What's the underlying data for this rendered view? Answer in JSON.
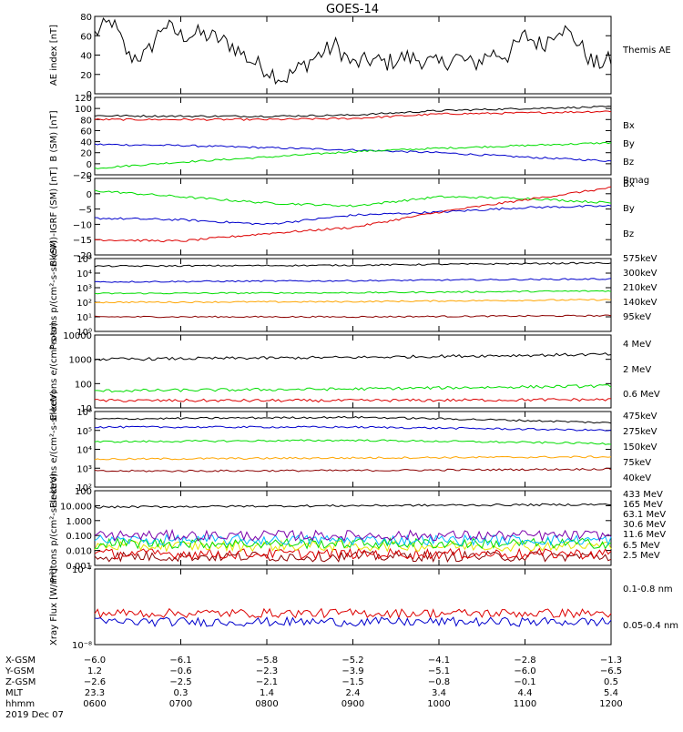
{
  "page": {
    "title": "GOES-14"
  },
  "colors": {
    "black": "#000000",
    "red": "#dd0000",
    "green": "#00dd00",
    "blue": "#0000cc",
    "orange": "#ffa500",
    "darkred": "#8b0000",
    "yellow": "#e6e600",
    "cyan": "#00bbff",
    "violet": "#7a00aa",
    "purple": "#cc0066"
  },
  "chart_data": [
    {
      "type": "line",
      "name": "ae",
      "ylabel": "AE index [nT]",
      "ylim": [
        0,
        80
      ],
      "yticks": [
        "0",
        "20",
        "40",
        "60",
        "80"
      ],
      "series": [
        {
          "name": "Themis AE",
          "color": "#000000",
          "x": [
            0.0,
            0.2,
            0.4,
            0.6,
            0.8,
            1.0,
            1.2,
            1.4,
            1.6,
            1.8,
            2.0,
            2.2,
            2.4,
            2.6,
            2.8,
            3.0,
            3.2,
            3.4,
            3.6,
            3.8,
            4.0,
            4.2,
            4.4,
            4.6,
            4.8,
            5.0,
            5.2,
            5.4,
            5.6,
            5.8,
            6.0
          ],
          "y": [
            62,
            75,
            38,
            40,
            72,
            60,
            62,
            58,
            50,
            35,
            25,
            15,
            28,
            40,
            50,
            30,
            35,
            32,
            38,
            35,
            30,
            38,
            30,
            42,
            40,
            60,
            50,
            70,
            55,
            30,
            35
          ]
        }
      ]
    },
    {
      "type": "line",
      "name": "bsm",
      "ylabel": "B (SM) [nT]",
      "ylim": [
        -20,
        120
      ],
      "yticks": [
        "−20",
        "0",
        "20",
        "40",
        "60",
        "80",
        "100",
        "120"
      ],
      "series": [
        {
          "name": "Bx",
          "color": "#0000cc",
          "x": [
            0,
            1,
            2,
            3,
            4,
            5,
            6
          ],
          "y": [
            35,
            33,
            29,
            25,
            20,
            12,
            5
          ]
        },
        {
          "name": "By",
          "color": "#00dd00",
          "x": [
            0,
            1,
            2,
            3,
            4,
            5,
            6
          ],
          "y": [
            -8,
            3,
            12,
            22,
            28,
            33,
            38
          ]
        },
        {
          "name": "Bz",
          "color": "#dd0000",
          "x": [
            0,
            1,
            2,
            3,
            4,
            5,
            6
          ],
          "y": [
            80,
            80,
            80,
            82,
            90,
            92,
            95
          ]
        },
        {
          "name": "Bmag",
          "color": "#000000",
          "x": [
            0,
            1,
            2,
            3,
            4,
            5,
            6
          ],
          "y": [
            87,
            86,
            86,
            88,
            96,
            100,
            103
          ]
        }
      ]
    },
    {
      "type": "line",
      "name": "bigrf",
      "ylabel": "B (SM)-IGRF (SM) [nT]",
      "ylim": [
        -20,
        5
      ],
      "yticks": [
        "−20",
        "−15",
        "−10",
        "−5",
        "0",
        "5"
      ],
      "series": [
        {
          "name": "Bx",
          "color": "#0000cc",
          "x": [
            0,
            1,
            2,
            3,
            4,
            5,
            6
          ],
          "y": [
            -8,
            -8.5,
            -10,
            -7,
            -6,
            -4.5,
            -4
          ]
        },
        {
          "name": "By",
          "color": "#00dd00",
          "x": [
            0,
            1,
            2,
            3,
            4,
            5,
            6
          ],
          "y": [
            1,
            -1,
            -3,
            -4,
            -1,
            -1.5,
            -3
          ]
        },
        {
          "name": "Bz",
          "color": "#dd0000",
          "x": [
            0,
            1,
            2,
            3,
            4,
            5,
            6
          ],
          "y": [
            -15,
            -15.5,
            -13,
            -11,
            -6,
            -2,
            2
          ]
        }
      ]
    },
    {
      "type": "line",
      "name": "protons_low",
      "ylabel": "Protons p/(cm²-s-sr-keV)",
      "ylim": [
        1,
        100000
      ],
      "yscale": "log",
      "yticks": [
        "10⁰",
        "10¹",
        "10²",
        "10³",
        "10⁴",
        "10⁵"
      ],
      "series": [
        {
          "name": "575keV",
          "color": "#8b0000",
          "x": [
            0,
            3,
            6
          ],
          "y": [
            10,
            10,
            12
          ]
        },
        {
          "name": "300keV",
          "color": "#ffa500",
          "x": [
            0,
            3,
            6
          ],
          "y": [
            100,
            110,
            150
          ]
        },
        {
          "name": "210keV",
          "color": "#00dd00",
          "x": [
            0,
            3,
            6
          ],
          "y": [
            400,
            450,
            600
          ]
        },
        {
          "name": "140keV",
          "color": "#0000cc",
          "x": [
            0,
            3,
            6
          ],
          "y": [
            2500,
            3000,
            4000
          ]
        },
        {
          "name": "95keV",
          "color": "#000000",
          "x": [
            0,
            3,
            6
          ],
          "y": [
            30000,
            35000,
            50000
          ]
        }
      ]
    },
    {
      "type": "line",
      "name": "electrons_high",
      "ylabel": "Electrons e/(cm²-s-sr)",
      "ylim": [
        10,
        10000
      ],
      "yscale": "log",
      "yticks": [
        "10",
        "100",
        "1000",
        "10000"
      ],
      "series": [
        {
          "name": "4 MeV",
          "color": "#dd0000",
          "x": [
            0,
            3,
            6
          ],
          "y": [
            20,
            20,
            22
          ]
        },
        {
          "name": "2 MeV",
          "color": "#00dd00",
          "x": [
            0,
            3,
            6
          ],
          "y": [
            50,
            60,
            80
          ]
        },
        {
          "name": "0.6 MeV",
          "color": "#000000",
          "x": [
            0,
            3,
            6
          ],
          "y": [
            1000,
            1200,
            1600
          ]
        }
      ]
    },
    {
      "type": "line",
      "name": "electrons_low",
      "ylabel": "Electrons e/(cm²-s-sr-keV)",
      "ylim": [
        100,
        1000000
      ],
      "yscale": "log",
      "yticks": [
        "10²",
        "10³",
        "10⁴",
        "10⁵",
        "10⁶"
      ],
      "series": [
        {
          "name": "475keV",
          "color": "#8b0000",
          "x": [
            0,
            3,
            6
          ],
          "y": [
            700,
            750,
            900
          ]
        },
        {
          "name": "275keV",
          "color": "#ffa500",
          "x": [
            0,
            3,
            6
          ],
          "y": [
            3000,
            3500,
            4000
          ]
        },
        {
          "name": "150keV",
          "color": "#00dd00",
          "x": [
            0,
            3,
            6
          ],
          "y": [
            25000,
            30000,
            20000
          ]
        },
        {
          "name": "75keV",
          "color": "#0000cc",
          "x": [
            0,
            3,
            6
          ],
          "y": [
            150000,
            150000,
            100000
          ]
        },
        {
          "name": "40keV",
          "color": "#000000",
          "x": [
            0,
            3,
            6
          ],
          "y": [
            400000,
            500000,
            250000
          ]
        }
      ]
    },
    {
      "type": "line",
      "name": "protons_high",
      "ylabel": "Protons p/(cm²-s-sr-keV)",
      "ylim": [
        0.001,
        100
      ],
      "yscale": "log",
      "yticks": [
        "0.001",
        "0.010",
        "0.100",
        "1.000",
        "10.000",
        "100"
      ],
      "series": [
        {
          "name": "433 MeV",
          "color": "#8b0000",
          "x": [
            0,
            6
          ],
          "y": [
            0.004,
            0.004
          ]
        },
        {
          "name": "165 MeV",
          "color": "#dd0000",
          "x": [
            0,
            6
          ],
          "y": [
            0.006,
            0.006
          ]
        },
        {
          "name": "63.1 MeV",
          "color": "#e6e600",
          "x": [
            0,
            6
          ],
          "y": [
            0.02,
            0.02
          ]
        },
        {
          "name": "30.6 MeV",
          "color": "#00dd00",
          "x": [
            0,
            6
          ],
          "y": [
            0.03,
            0.03
          ]
        },
        {
          "name": "11.6 MeV",
          "color": "#00bbff",
          "x": [
            0,
            6
          ],
          "y": [
            0.05,
            0.05
          ]
        },
        {
          "name": "6.5 MeV",
          "color": "#7a00aa",
          "x": [
            0,
            6
          ],
          "y": [
            0.1,
            0.1
          ]
        },
        {
          "name": "2.5 MeV",
          "color": "#000000",
          "x": [
            0,
            6
          ],
          "y": [
            8,
            12
          ]
        }
      ]
    },
    {
      "type": "line",
      "name": "xray",
      "ylabel": "Xray Flux [W/m²]",
      "ylim": [
        1e-08,
        1e-07
      ],
      "yscale": "log",
      "yticks": [
        "10⁻⁸",
        "10⁻⁷"
      ],
      "series": [
        {
          "name": "0.1-0.8 nm",
          "color": "#dd0000",
          "x": [
            0,
            6
          ],
          "y": [
            2.6e-08,
            2.6e-08
          ]
        },
        {
          "name": "0.05-0.4 nm",
          "color": "#0000cc",
          "x": [
            0,
            6
          ],
          "y": [
            2e-08,
            2e-08
          ]
        }
      ]
    }
  ],
  "xaxis": {
    "rows": [
      {
        "label": "X-GSM",
        "values": [
          "−6.0",
          "−6.1",
          "−5.8",
          "−5.2",
          "−4.1",
          "−2.8",
          "−1.3"
        ]
      },
      {
        "label": "Y-GSM",
        "values": [
          "1.2",
          "−0.6",
          "−2.3",
          "−3.9",
          "−5.1",
          "−6.0",
          "−6.5"
        ]
      },
      {
        "label": "Z-GSM",
        "values": [
          "−2.6",
          "−2.5",
          "−2.1",
          "−1.5",
          "−0.8",
          "−0.1",
          "0.5"
        ]
      },
      {
        "label": "MLT",
        "values": [
          "23.3",
          "0.3",
          "1.4",
          "2.4",
          "3.4",
          "4.4",
          "5.4"
        ]
      },
      {
        "label": "hhmm",
        "values": [
          "0600",
          "0700",
          "0800",
          "0900",
          "1000",
          "1100",
          "1200"
        ]
      }
    ],
    "date": "2019 Dec 07"
  }
}
